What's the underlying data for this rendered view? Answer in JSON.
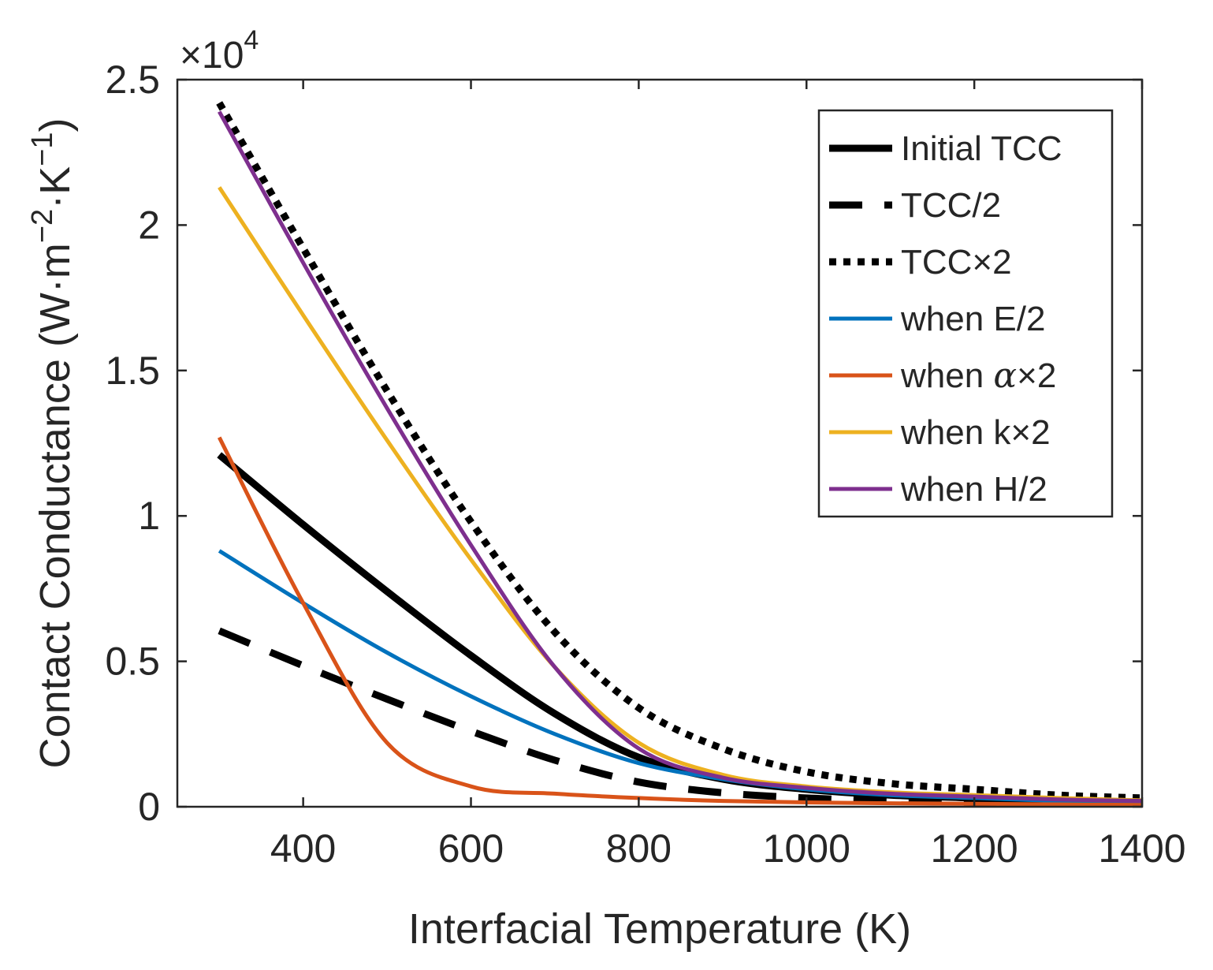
{
  "chart_data": {
    "type": "line",
    "title": "",
    "xlabel": "Interfacial Temperature (K)",
    "ylabel": "Contact Conductance (W·m⁻²·K⁻¹)",
    "ylabel_parts": {
      "base": "Contact Conductance (W·m",
      "sup1": "−2",
      "mid": "·K",
      "sup2": "−1",
      "end": ")"
    },
    "exponent_label": {
      "prefix": "×10",
      "power": "4"
    },
    "xlim": [
      250,
      1400
    ],
    "ylim": [
      0,
      2.5
    ],
    "y_scale_factor": 10000,
    "xticks": [
      400,
      600,
      800,
      1000,
      1200,
      1400
    ],
    "xtick_labels": [
      "400",
      "600",
      "800",
      "1000",
      "1200",
      "1400"
    ],
    "yticks": [
      0,
      0.5,
      1,
      1.5,
      2,
      2.5
    ],
    "ytick_labels": [
      "0",
      "0.5",
      "1",
      "1.5",
      "2",
      "2.5"
    ],
    "grid": false,
    "legend_position": "top-right",
    "x": [
      300,
      400,
      500,
      600,
      700,
      800,
      900,
      1000,
      1100,
      1200,
      1300,
      1400
    ],
    "series": [
      {
        "name": "Initial TCC",
        "legend_label": "Initial TCC",
        "color": "#000000",
        "style": "solid-thick",
        "values": [
          1.21,
          0.97,
          0.74,
          0.52,
          0.32,
          0.17,
          0.095,
          0.06,
          0.04,
          0.03,
          0.02,
          0.015
        ]
      },
      {
        "name": "TCC/2",
        "legend_label": "TCC/2",
        "color": "#000000",
        "style": "dashed",
        "values": [
          0.605,
          0.485,
          0.37,
          0.26,
          0.16,
          0.085,
          0.048,
          0.03,
          0.02,
          0.015,
          0.01,
          0.008
        ]
      },
      {
        "name": "TCC×2",
        "legend_label": "TCC×2",
        "color": "#000000",
        "style": "dotted",
        "values": [
          2.42,
          1.92,
          1.43,
          0.98,
          0.6,
          0.34,
          0.2,
          0.12,
          0.08,
          0.06,
          0.04,
          0.03
        ]
      },
      {
        "name": "when E/2",
        "legend_label_prefix": "when E/2",
        "legend_label": "when E/2",
        "color": "#0072BD",
        "style": "solid",
        "values": [
          0.88,
          0.7,
          0.53,
          0.38,
          0.25,
          0.15,
          0.095,
          0.06,
          0.04,
          0.03,
          0.02,
          0.015
        ]
      },
      {
        "name": "when α×2",
        "legend_label_prefix": "when ",
        "legend_label_symbol": "α",
        "legend_label_suffix": "×2",
        "color": "#D95319",
        "style": "solid",
        "values": [
          1.27,
          0.7,
          0.22,
          0.07,
          0.045,
          0.03,
          0.02,
          0.015,
          0.012,
          0.01,
          0.008,
          0.006
        ]
      },
      {
        "name": "when k×2",
        "legend_label": "when k×2",
        "color": "#EDB120",
        "style": "solid",
        "values": [
          2.13,
          1.69,
          1.26,
          0.85,
          0.48,
          0.22,
          0.11,
          0.07,
          0.05,
          0.04,
          0.03,
          0.022
        ]
      },
      {
        "name": "when H/2",
        "legend_label": "when H/2",
        "color": "#7E2F8E",
        "style": "solid",
        "values": [
          2.39,
          1.87,
          1.37,
          0.9,
          0.48,
          0.2,
          0.1,
          0.065,
          0.045,
          0.035,
          0.025,
          0.02
        ]
      }
    ]
  }
}
